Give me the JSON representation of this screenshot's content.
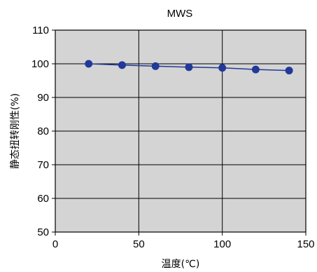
{
  "chart_data": {
    "type": "line",
    "title": "MWS",
    "xlabel": "温度(℃)",
    "ylabel": "静态扭转刚性(%)",
    "xlim": [
      0,
      150
    ],
    "ylim": [
      50,
      110
    ],
    "xticks": [
      0,
      50,
      100,
      150
    ],
    "yticks": [
      50,
      60,
      70,
      80,
      90,
      100,
      110
    ],
    "grid": true,
    "series": [
      {
        "x": [
          20,
          40,
          60,
          80,
          100,
          120,
          140
        ],
        "y": [
          100,
          99.6,
          99.3,
          99.0,
          98.8,
          98.3,
          98.0
        ],
        "color": "#22399a"
      }
    ],
    "plot_background": "#d4d4d4"
  }
}
